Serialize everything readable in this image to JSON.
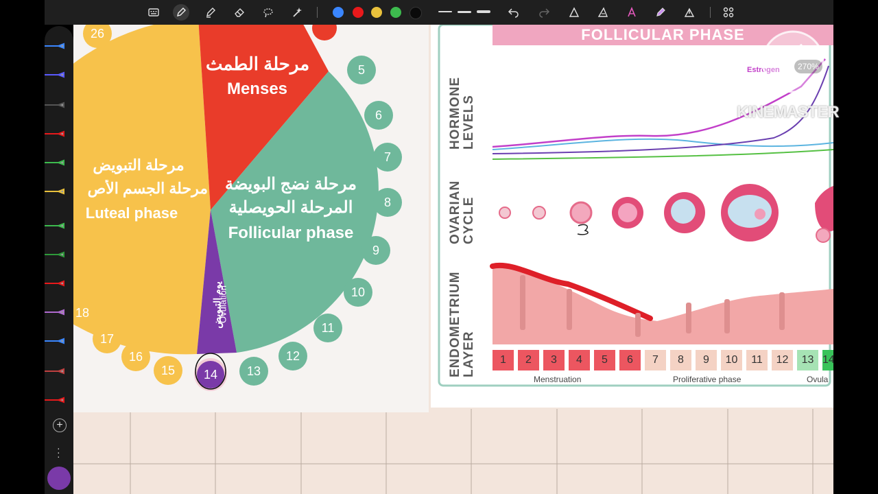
{
  "toolbar": {
    "tools": [
      "keyboard-icon",
      "pen-icon",
      "highlighter-icon",
      "eraser-icon",
      "lasso-icon",
      "magic-wand-icon",
      "colour-blue-swatch",
      "colour-red-swatch",
      "colour-yellow-swatch",
      "colour-green-swatch",
      "colour-black-swatch",
      "thin-line",
      "medium-line",
      "thick-line",
      "undo-icon",
      "redo-icon",
      "shape-icon",
      "ruler-icon",
      "text-icon",
      "highlight-tool-icon",
      "share-icon",
      "grid-icon"
    ],
    "colors": {
      "blue": "#3a86ff",
      "red": "#e8191b",
      "yellow": "#e9c13c",
      "green": "#3dbb4e",
      "black": "#0a0a0a"
    }
  },
  "watermark": {
    "zoom": "270%",
    "brand": "KINEMASTER"
  },
  "left_diagram": {
    "phases": {
      "menses_ar": "مرحلة الطمث",
      "menses_en": "Menses",
      "follicular_ar1": "مرحلة نضج البويضة",
      "follicular_ar2": "المرحلة الحويصلية",
      "follicular_en": "Follicular phase",
      "luteal_ar1": "مرحلة التبويض",
      "luteal_ar2": "مرحلة الجسم الأص",
      "luteal_en": "Luteal phase",
      "ovulation_ar": "يوم التبويض",
      "ovulation_en": "Ovulation"
    },
    "days": [
      "26",
      "5",
      "6",
      "7",
      "8",
      "9",
      "10",
      "11",
      "12",
      "13",
      "14",
      "15",
      "16",
      "17",
      "18"
    ]
  },
  "right_diagram": {
    "title": "FOLLICULAR PHASE",
    "axis_labels": [
      "HORMONE LEVELS",
      "OVARIAN CYCLE",
      "ENDOMETRIUM LAYER"
    ],
    "hormone_label": "Estrogen",
    "days": [
      "1",
      "2",
      "3",
      "4",
      "5",
      "6",
      "7",
      "8",
      "9",
      "10",
      "11",
      "12",
      "13",
      "14"
    ],
    "phases": [
      "Menstruation",
      "Proliferative phase",
      "Ovula"
    ]
  }
}
